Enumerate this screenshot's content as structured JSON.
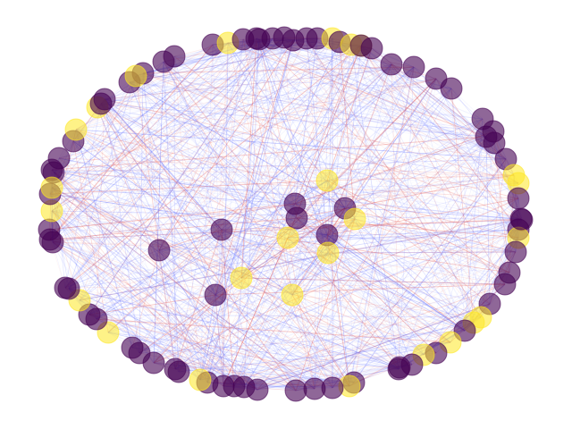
{
  "graph": {
    "palette": {
      "background": "#ffffff",
      "node_purple": "#440154",
      "node_yellow": "#fde725",
      "edge_blue": "#6f7cff",
      "edge_red": "#e8524a"
    },
    "node_count_outer_ring": 92,
    "node_count_inner": 13,
    "inner_nodes": [
      {
        "color": "purple"
      },
      {
        "color": "yellow"
      },
      {
        "color": "purple"
      },
      {
        "color": "purple"
      },
      {
        "color": "purple"
      },
      {
        "color": "yellow"
      },
      {
        "color": "purple"
      },
      {
        "color": "yellow"
      },
      {
        "color": "yellow"
      },
      {
        "color": "purple"
      },
      {
        "color": "purple"
      },
      {
        "color": "yellow"
      },
      {
        "color": "yellow"
      }
    ]
  }
}
